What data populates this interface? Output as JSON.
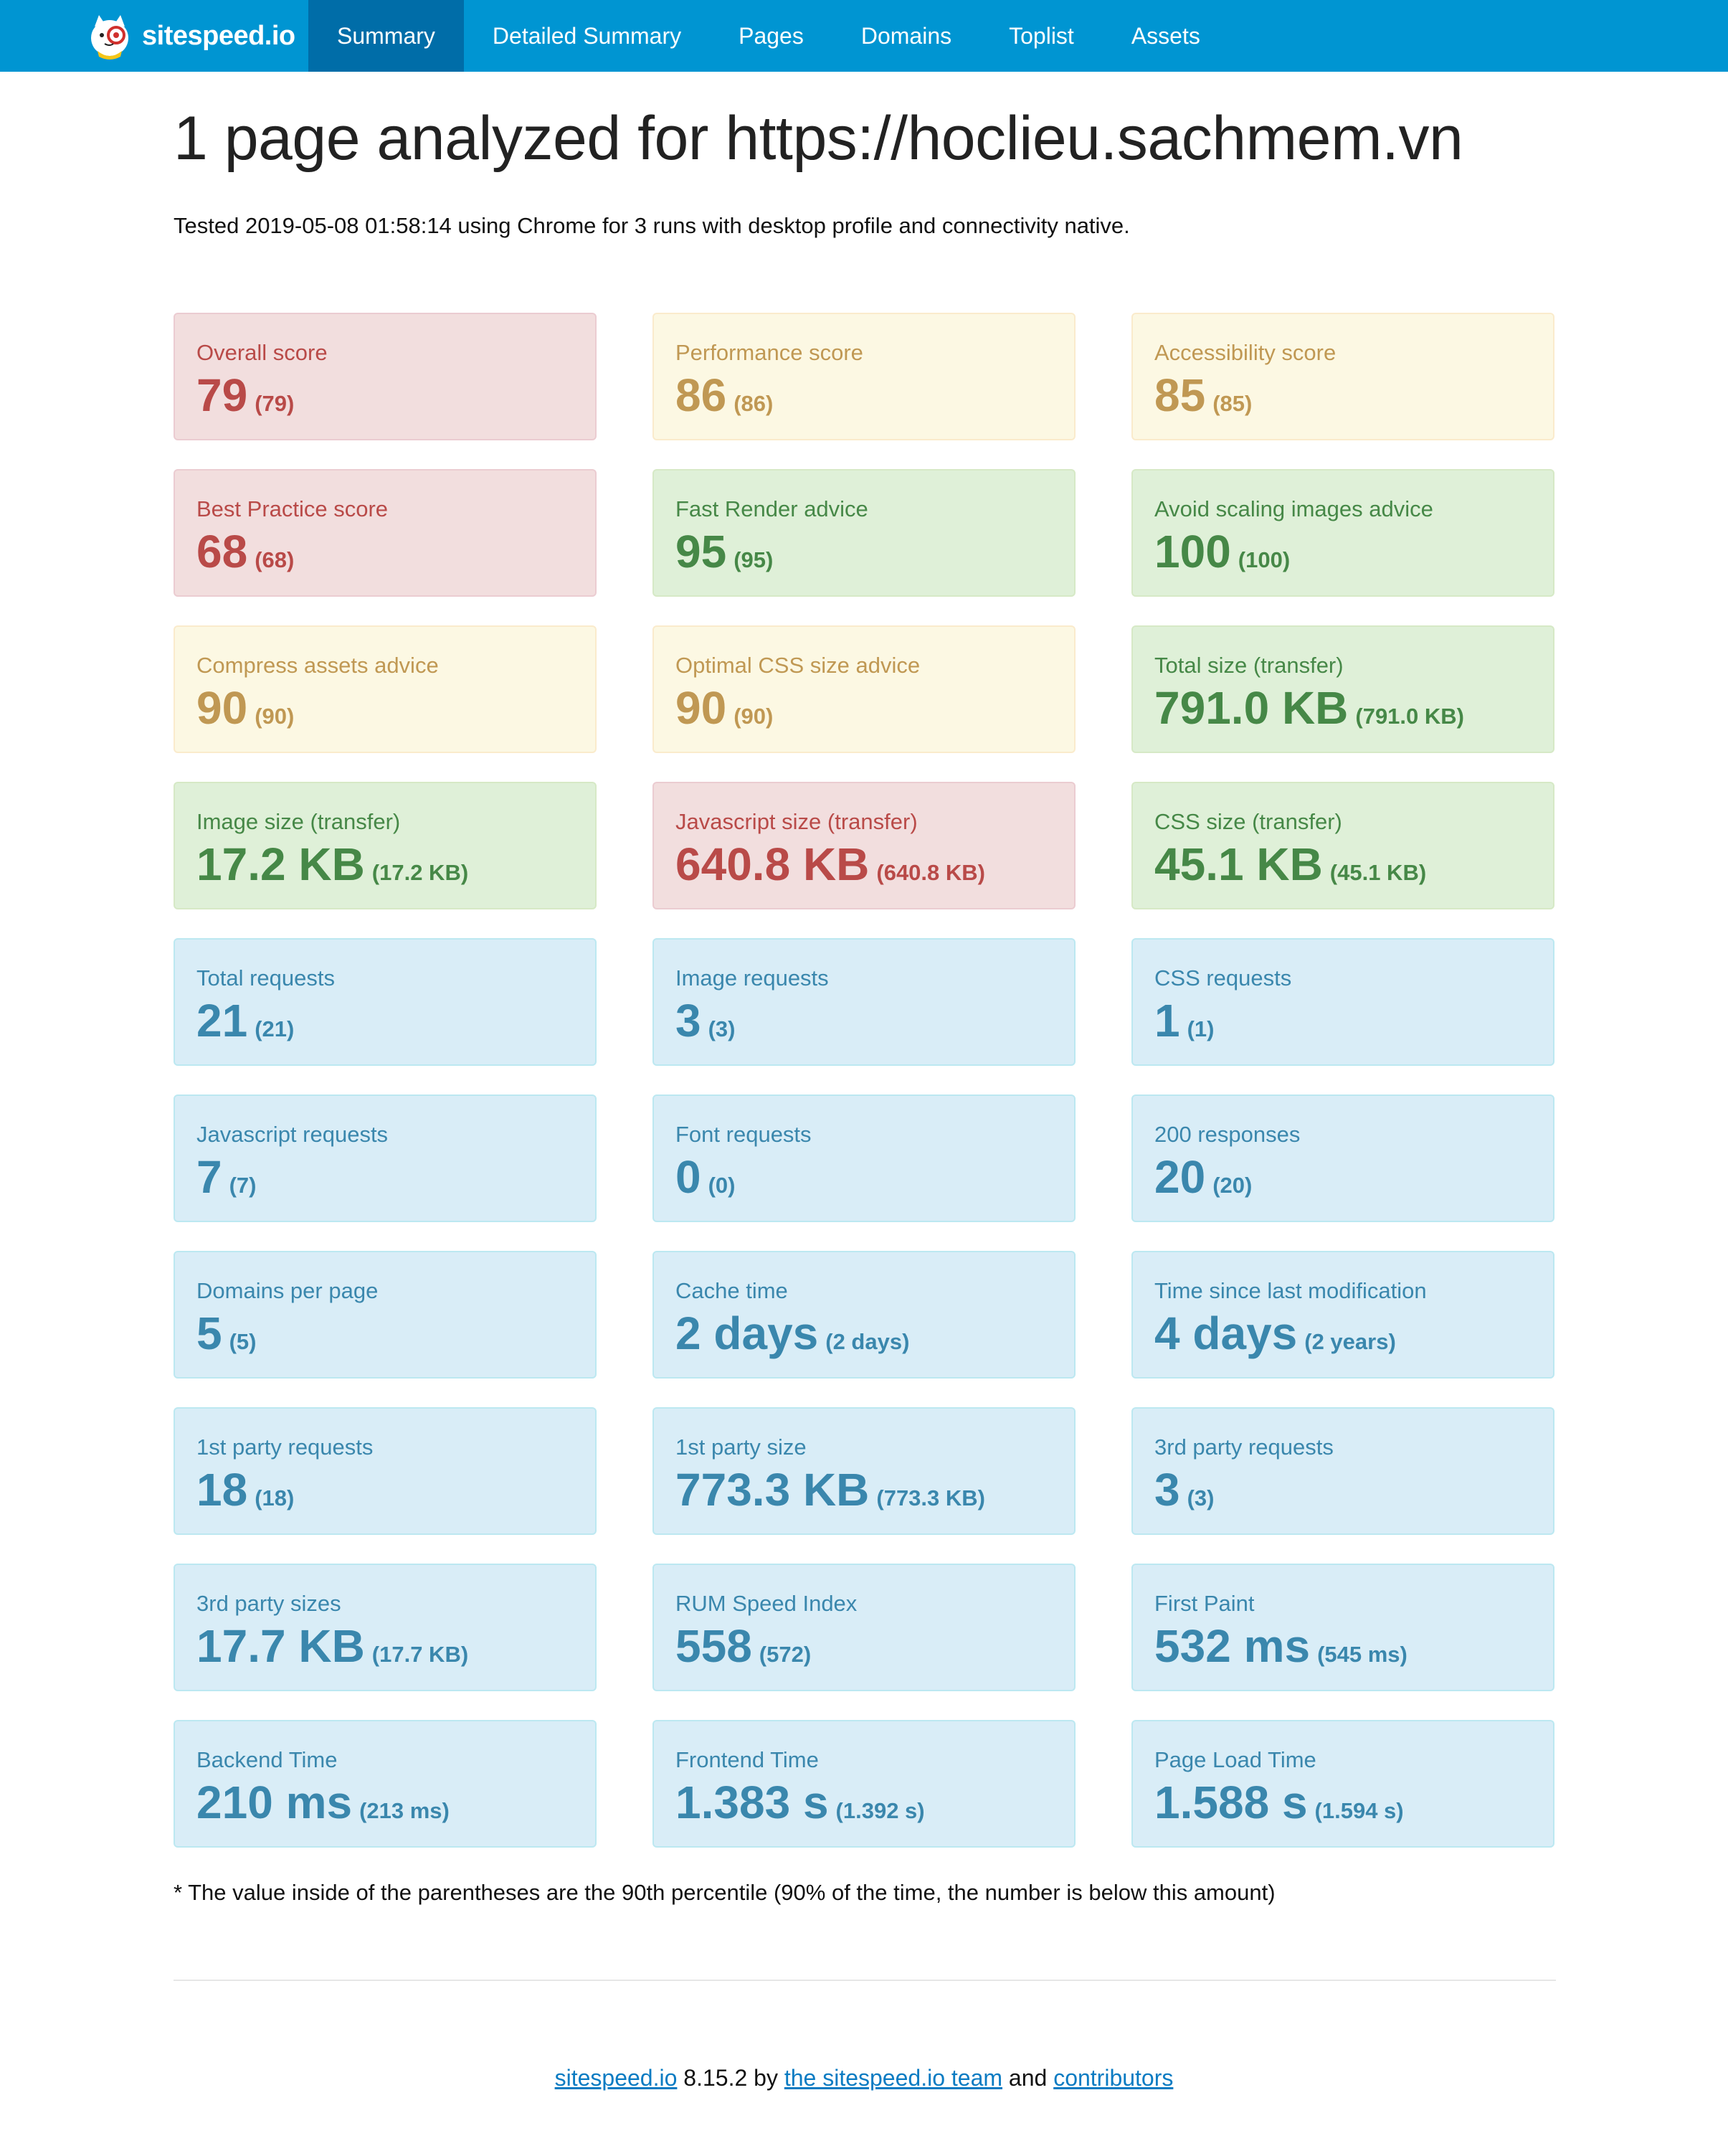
{
  "brand": {
    "name": "sitespeed.io"
  },
  "nav": {
    "items": [
      {
        "label": "Summary",
        "active": true
      },
      {
        "label": "Detailed Summary"
      },
      {
        "label": "Pages"
      },
      {
        "label": "Domains"
      },
      {
        "label": "Toplist"
      },
      {
        "label": "Assets"
      }
    ]
  },
  "main": {
    "title": "1 page analyzed for https://hoclieu.sachmem.vn",
    "tested": "Tested 2019-05-08 01:58:14 using Chrome for 3 runs with desktop profile and connectivity native."
  },
  "colors": {
    "navbar": "#0095d2",
    "nav_active": "#006da8",
    "danger": "#b94a48",
    "warning": "#c09853",
    "success": "#468847",
    "info": "#3a87ad",
    "link": "#0a7bc2"
  },
  "cards": [
    {
      "title": "Overall score",
      "value": "79",
      "p90": "(79)",
      "status": "danger"
    },
    {
      "title": "Performance score",
      "value": "86",
      "p90": "(86)",
      "status": "warning"
    },
    {
      "title": "Accessibility score",
      "value": "85",
      "p90": "(85)",
      "status": "warning"
    },
    {
      "title": "Best Practice score",
      "value": "68",
      "p90": "(68)",
      "status": "danger"
    },
    {
      "title": "Fast Render advice",
      "value": "95",
      "p90": "(95)",
      "status": "success"
    },
    {
      "title": "Avoid scaling images advice",
      "value": "100",
      "p90": "(100)",
      "status": "success"
    },
    {
      "title": "Compress assets advice",
      "value": "90",
      "p90": "(90)",
      "status": "warning"
    },
    {
      "title": "Optimal CSS size advice",
      "value": "90",
      "p90": "(90)",
      "status": "warning"
    },
    {
      "title": "Total size (transfer)",
      "value": "791.0 KB",
      "p90": "(791.0 KB)",
      "status": "success"
    },
    {
      "title": "Image size (transfer)",
      "value": "17.2 KB",
      "p90": "(17.2 KB)",
      "status": "success"
    },
    {
      "title": "Javascript size (transfer)",
      "value": "640.8 KB",
      "p90": "(640.8 KB)",
      "status": "danger"
    },
    {
      "title": "CSS size (transfer)",
      "value": "45.1 KB",
      "p90": "(45.1 KB)",
      "status": "success"
    },
    {
      "title": "Total requests",
      "value": "21",
      "p90": "(21)",
      "status": "info"
    },
    {
      "title": "Image requests",
      "value": "3",
      "p90": "(3)",
      "status": "info"
    },
    {
      "title": "CSS requests",
      "value": "1",
      "p90": "(1)",
      "status": "info"
    },
    {
      "title": "Javascript requests",
      "value": "7",
      "p90": "(7)",
      "status": "info"
    },
    {
      "title": "Font requests",
      "value": "0",
      "p90": "(0)",
      "status": "info"
    },
    {
      "title": "200 responses",
      "value": "20",
      "p90": "(20)",
      "status": "info"
    },
    {
      "title": "Domains per page",
      "value": "5",
      "p90": "(5)",
      "status": "info"
    },
    {
      "title": "Cache time",
      "value": "2 days",
      "p90": "(2 days)",
      "status": "info"
    },
    {
      "title": "Time since last modification",
      "value": "4 days",
      "p90": "(2 years)",
      "status": "info"
    },
    {
      "title": "1st party requests",
      "value": "18",
      "p90": "(18)",
      "status": "info"
    },
    {
      "title": "1st party size",
      "value": "773.3 KB",
      "p90": "(773.3 KB)",
      "status": "info"
    },
    {
      "title": "3rd party requests",
      "value": "3",
      "p90": "(3)",
      "status": "info"
    },
    {
      "title": "3rd party sizes",
      "value": "17.7 KB",
      "p90": "(17.7 KB)",
      "status": "info"
    },
    {
      "title": "RUM Speed Index",
      "value": "558",
      "p90": "(572)",
      "status": "info"
    },
    {
      "title": "First Paint",
      "value": "532 ms",
      "p90": "(545 ms)",
      "status": "info"
    },
    {
      "title": "Backend Time",
      "value": "210 ms",
      "p90": "(213 ms)",
      "status": "info"
    },
    {
      "title": "Frontend Time",
      "value": "1.383 s",
      "p90": "(1.392 s)",
      "status": "info"
    },
    {
      "title": "Page Load Time",
      "value": "1.588 s",
      "p90": "(1.594 s)",
      "status": "info"
    }
  ],
  "footnote": "* The value inside of the parentheses are the 90th percentile (90% of the time, the number is below this amount)",
  "footer": {
    "link1": "sitespeed.io",
    "version": " 8.15.2 by ",
    "link2": "the sitespeed.io team",
    "and": " and ",
    "link3": "contributors"
  }
}
